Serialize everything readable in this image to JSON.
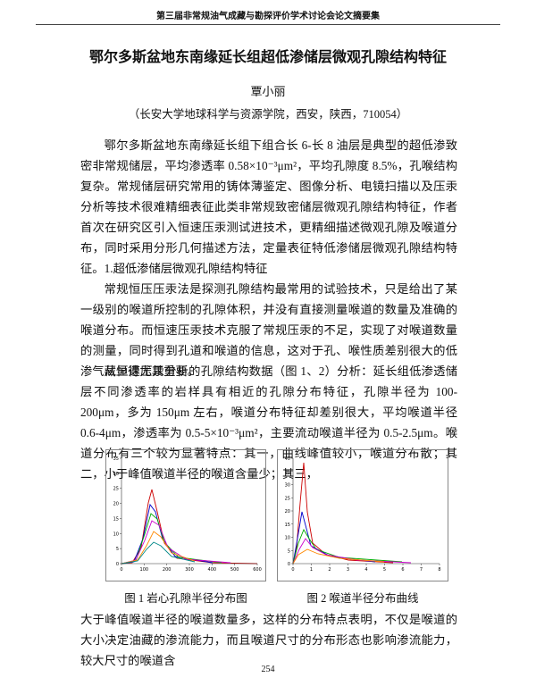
{
  "header": {
    "running_title": "第三届非常规油气成藏与勘探评价学术讨论会论文摘要集"
  },
  "title": "鄂尔多斯盆地东南缘延长组超低渗储层微观孔隙结构特征",
  "author": "覃小丽",
  "affiliation": "（长安大学地球科学与资源学院，西安，陕西，710054）",
  "paragraph_1": "鄂尔多斯盆地东南缘延长组下组合长 6-长 8 油层是典型的超低渗致密非常规储层，平均渗透率 0.58×10⁻³μm²，平均孔隙度 8.5%，孔喉结构复杂。常规储层研究常用的铸体薄鉴定、图像分析、电镜扫描以及压汞分析等技术很难精细表征此类非常规致密储层微观孔隙结构特征，作者首次在研究区引入恒速压汞测试进技术，更精细描述微观孔隙及喉道分布，同时采用分形几何描述方法，定量表征特低渗储层微观孔隙结构特征。",
  "section_heading": "1.超低渗储层微观孔隙结构特征",
  "paragraph_2": "常规恒压压汞法是探测孔隙结构最常用的试验技术，只是给出了某一级别的喉道所控制的孔隙体积，并没有直接测量喉道的数量及准确的喉道分布。而恒速压汞技术克服了常规压汞的不足，实现了对喉道数量的测量，同时得到孔道和喉道的信息，这对于孔、喉性质差别很大的低渗气藏显得尤其重要。",
  "paragraph_3": "从恒速压汞分析的孔隙结构数据（图 1、2）分析：延长组低渗透储层不同渗透率的岩样具有相近的孔隙分布特征，孔隙半径为 100-200μm，多为 150μm 左右，喉道分布特征却差别很大，平均喉道半径 0.6-4μm，渗透率为 0.5-5×10⁻³μm²，主要流动喉道半径为 0.5-2.5μm。喉道分布有三个较为显著特点：其一，曲线峰值较小，喉道分布散；其二，小于峰值喉道半径的喉道含量少；其三，",
  "figures": [
    {
      "caption": "图 1 岩心孔隙半径分布图",
      "xticks": [
        0,
        100,
        200,
        300,
        400,
        500,
        600
      ],
      "yticks": [
        0,
        5,
        10,
        15,
        20,
        25,
        30,
        35
      ]
    },
    {
      "caption": "图 2 喉道半径分布曲线",
      "xticks": [
        0,
        1,
        2,
        3,
        4,
        5,
        6,
        7,
        8
      ],
      "yticks": [
        0,
        5,
        10,
        15,
        20,
        25,
        30,
        35,
        40
      ]
    }
  ],
  "paragraph_4": "大于峰值喉道半径的喉道数量多，这样的分布特点表明，不仅是喉道的大小决定油藏的渗流能力，而且喉道尺寸的分布形态也影响渗流能力，较大尺寸的喉道含",
  "page_number": "254"
}
